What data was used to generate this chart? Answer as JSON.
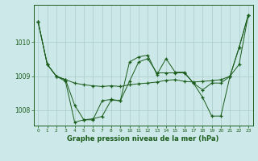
{
  "title": "Graphe pression niveau de la mer (hPa)",
  "background_color": "#cce8e8",
  "grid_color": "#aacccc",
  "line_color": "#1a5c1a",
  "marker": "+",
  "xlim": [
    -0.5,
    23.5
  ],
  "ylim": [
    1007.55,
    1011.1
  ],
  "yticks": [
    1008,
    1009,
    1010
  ],
  "xticks": [
    0,
    1,
    2,
    3,
    4,
    5,
    6,
    7,
    8,
    9,
    10,
    11,
    12,
    13,
    14,
    15,
    16,
    17,
    18,
    19,
    20,
    21,
    22,
    23
  ],
  "series": [
    [
      1010.6,
      1009.35,
      1009.0,
      1008.9,
      1008.8,
      1008.75,
      1008.72,
      1008.7,
      1008.72,
      1008.7,
      1008.75,
      1008.78,
      1008.8,
      1008.83,
      1008.88,
      1008.9,
      1008.85,
      1008.83,
      1008.85,
      1008.87,
      1008.9,
      1009.0,
      1009.35,
      1010.8
    ],
    [
      1010.6,
      1009.35,
      1009.0,
      1008.9,
      1008.15,
      1007.72,
      1007.75,
      1007.82,
      1008.3,
      1008.28,
      1008.85,
      1009.42,
      1009.52,
      1009.1,
      1009.1,
      1009.1,
      1009.1,
      1008.8,
      1008.6,
      1008.8,
      1008.8,
      1009.0,
      1009.85,
      1010.8
    ],
    [
      1010.6,
      1009.35,
      1009.0,
      1008.85,
      1007.65,
      1007.72,
      1007.72,
      1008.28,
      1008.32,
      1008.28,
      1009.42,
      1009.57,
      1009.62,
      1009.05,
      1009.52,
      1009.12,
      1009.12,
      1008.8,
      1008.38,
      1007.83,
      1007.83,
      1009.0,
      1009.85,
      1010.8
    ]
  ]
}
